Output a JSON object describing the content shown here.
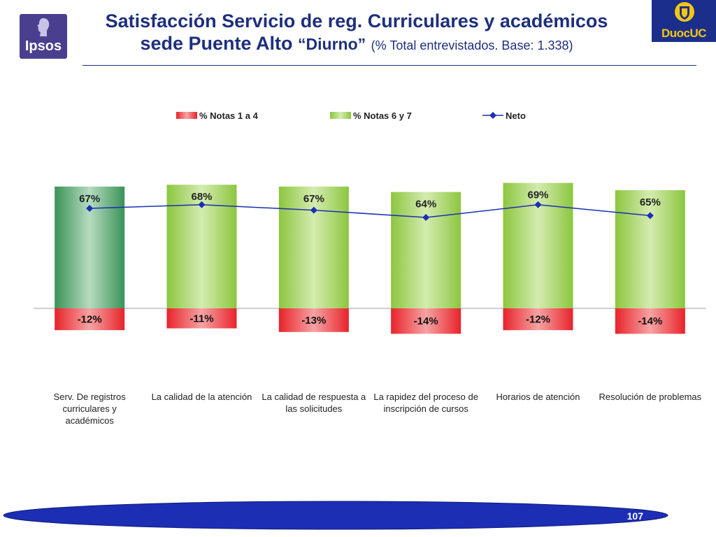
{
  "header": {
    "title_line1": "Satisfacción Servicio de reg. Curriculares y académicos",
    "title_line2_main": "sede Puente Alto",
    "title_line2_quoted": "“Diurno”",
    "title_line2_base": "(% Total entrevistados. Base: 1.338)"
  },
  "logos": {
    "left_text": "Ipsos",
    "right_text": "DuocUC"
  },
  "page_number": "107",
  "colors": {
    "title": "#1e2f7d",
    "negative_bar": "#e8232a",
    "positive_bar": "#8cc63f",
    "first_positive_bar": "#3b9256",
    "line": "#1c2eb4",
    "footer_band": "#1c2eb4"
  },
  "chart_data": {
    "type": "bar",
    "categories": [
      "Serv. De registros curriculares y académicos",
      "La calidad de la atención",
      "La calidad de respuesta a las solicitudes",
      "La rapidez del proceso de inscripción de cursos",
      "Horarios de atención",
      "Resolución de problemas"
    ],
    "series": [
      {
        "name": "% Notas 1 a 4",
        "values": [
          -12,
          -11,
          -13,
          -14,
          -12,
          -14
        ],
        "labels": [
          "-12%",
          "-11%",
          "-13%",
          "-14%",
          "-12%",
          "-14%"
        ]
      },
      {
        "name": "% Notas 6 y 7",
        "values": [
          67,
          68,
          67,
          64,
          69,
          65
        ],
        "labels": [
          "67%",
          "68%",
          "67%",
          "64%",
          "69%",
          "65%"
        ]
      },
      {
        "name": "Neto",
        "type": "line",
        "values": [
          55,
          57,
          54,
          50,
          57,
          51
        ]
      }
    ],
    "ylim": [
      -16,
      73
    ],
    "legend_position": "top",
    "grid": false
  }
}
